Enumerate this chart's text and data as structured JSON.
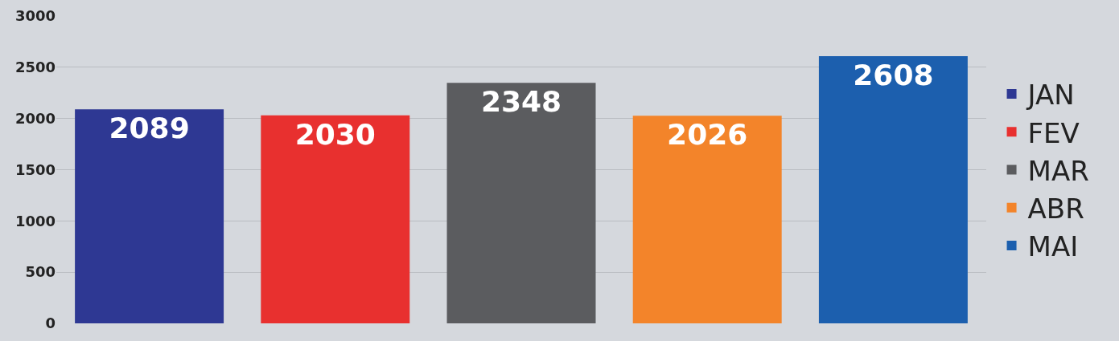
{
  "chart_data": {
    "type": "bar",
    "categories": [
      null,
      null,
      null,
      null,
      null
    ],
    "series": [
      {
        "name": "JAN",
        "color": "#2e3893",
        "values": [
          2089,
          null,
          null,
          null,
          null
        ]
      },
      {
        "name": "FEV",
        "color": "#e8302f",
        "values": [
          null,
          2030,
          null,
          null,
          null
        ]
      },
      {
        "name": "MAR",
        "color": "#5b5c5f",
        "values": [
          null,
          null,
          2348,
          null,
          null
        ]
      },
      {
        "name": "ABR",
        "color": "#f3842a",
        "values": [
          null,
          null,
          null,
          2026,
          null
        ]
      },
      {
        "name": "MAI",
        "color": "#1c5fae",
        "values": [
          null,
          null,
          null,
          null,
          2608
        ]
      }
    ],
    "ylim": [
      0,
      3000
    ],
    "yticks": [
      0,
      500,
      1000,
      1500,
      2000,
      2500,
      3000
    ],
    "grid": "y",
    "legend": "right",
    "tick_labels": "y",
    "data_labels": true
  }
}
